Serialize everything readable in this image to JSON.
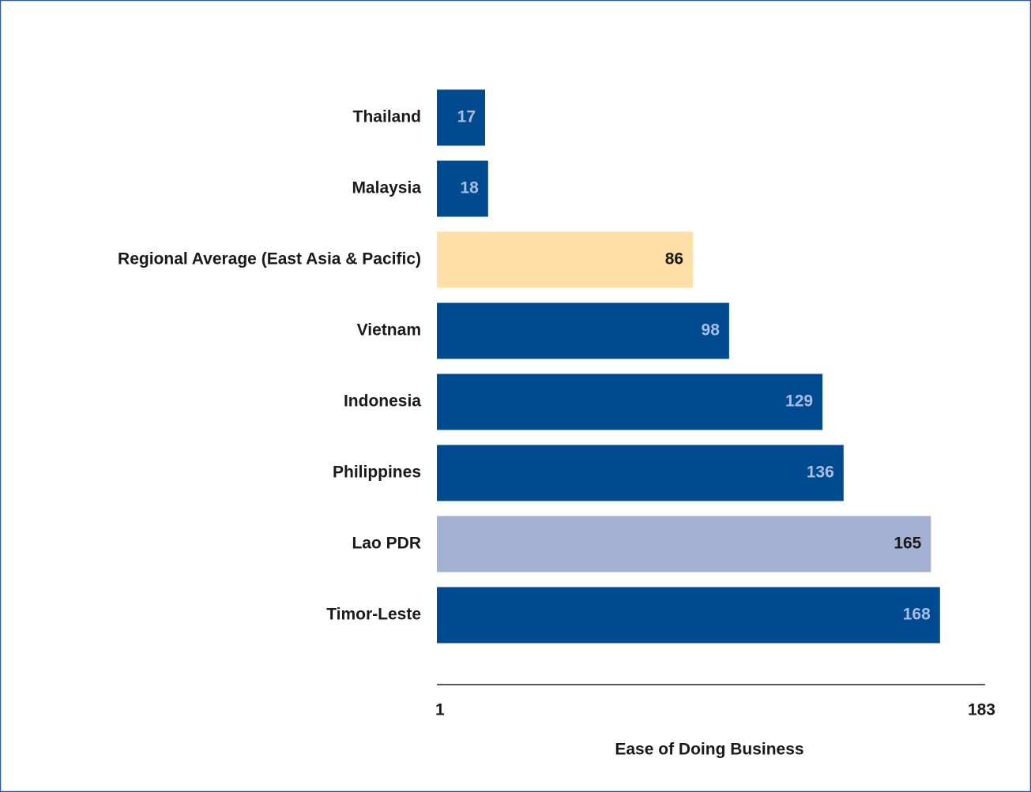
{
  "chart_data": {
    "type": "bar",
    "orientation": "horizontal",
    "xlabel": "Ease of Doing Business",
    "categories": [
      "Thailand",
      "Malaysia",
      "Regional Average (East Asia & Pacific)",
      "Vietnam",
      "Indonesia",
      "Philippines",
      "Lao PDR",
      "Timor-Leste"
    ],
    "values": [
      17,
      18,
      86,
      98,
      129,
      136,
      165,
      168
    ],
    "colors": [
      "#004a8f",
      "#004a8f",
      "#fddfa7",
      "#004a8f",
      "#004a8f",
      "#004a8f",
      "#a4b1d3",
      "#004a8f"
    ],
    "label_colors": [
      "#a9bde0",
      "#a9bde0",
      "#1a1a1a",
      "#a9bde0",
      "#a9bde0",
      "#a9bde0",
      "#1a1a1a",
      "#a9bde0"
    ],
    "xlim": [
      1,
      183
    ],
    "xticks": [
      1,
      183
    ],
    "grid": false
  }
}
